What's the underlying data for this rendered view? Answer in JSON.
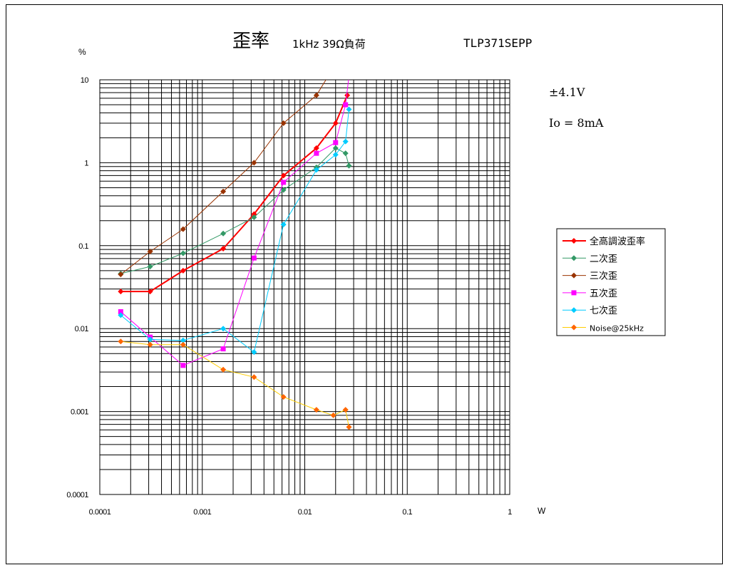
{
  "chart_data": {
    "type": "line",
    "title": "歪率",
    "subtitle": "1kHz 39Ω負荷",
    "model": "TLP371SEPP",
    "annotations": [
      "±4.1V",
      "Io = 8mA"
    ],
    "xlabel": "W",
    "ylabel": "%",
    "xscale": "log",
    "yscale": "log",
    "xlim": [
      0.0001,
      1
    ],
    "ylim": [
      0.0001,
      10
    ],
    "xticks": [
      "0.0001",
      "0.001",
      "0.01",
      "0.1",
      "1"
    ],
    "yticks": [
      "10",
      "1",
      "0.1",
      "0.01",
      "0.001",
      "0.0001"
    ],
    "grid": true,
    "legend_position": "right",
    "series": [
      {
        "name": "全高調波歪率",
        "color": "#ff0000",
        "marker": "diamond",
        "width": 2,
        "x": [
          0.00016,
          0.00031,
          0.00065,
          0.0016,
          0.0032,
          0.0062,
          0.013,
          0.02,
          0.026
        ],
        "y": [
          0.028,
          0.028,
          0.05,
          0.092,
          0.24,
          0.7,
          1.5,
          3.0,
          6.5
        ]
      },
      {
        "name": "二次歪",
        "color": "#339966",
        "marker": "diamond",
        "width": 1,
        "x": [
          0.00016,
          0.00031,
          0.00065,
          0.0016,
          0.0032,
          0.0062,
          0.013,
          0.02,
          0.025,
          0.027
        ],
        "y": [
          0.046,
          0.056,
          0.081,
          0.14,
          0.22,
          0.47,
          0.88,
          1.5,
          1.3,
          0.92
        ]
      },
      {
        "name": "三次歪",
        "color": "#993300",
        "marker": "diamond",
        "width": 1,
        "x": [
          0.00016,
          0.00031,
          0.00065,
          0.0016,
          0.0032,
          0.0062,
          0.013,
          0.019
        ],
        "y": [
          0.045,
          0.085,
          0.158,
          0.45,
          1.0,
          3.0,
          6.5,
          14
        ]
      },
      {
        "name": "五次歪",
        "color": "#ff00ff",
        "marker": "square",
        "width": 1,
        "x": [
          0.00016,
          0.00031,
          0.00065,
          0.0016,
          0.0032,
          0.0062,
          0.013,
          0.02,
          0.025,
          0.027
        ],
        "y": [
          0.016,
          0.0079,
          0.0036,
          0.0057,
          0.071,
          0.58,
          1.3,
          1.75,
          5.0,
          11
        ]
      },
      {
        "name": "七次歪",
        "color": "#00ccff",
        "marker": "diamond",
        "width": 1,
        "x": [
          0.00016,
          0.00031,
          0.00065,
          0.0016,
          0.0032,
          0.0062,
          0.013,
          0.02,
          0.025,
          0.027
        ],
        "y": [
          0.0145,
          0.0074,
          0.0072,
          0.01,
          0.0052,
          0.18,
          0.82,
          1.25,
          1.8,
          4.4
        ]
      },
      {
        "name": "Noise@25kHz",
        "color": "#ff6600",
        "line_color": "#ffcc00",
        "marker": "diamond",
        "width": 1,
        "x": [
          0.00016,
          0.00031,
          0.00065,
          0.0016,
          0.0032,
          0.0062,
          0.013,
          0.019,
          0.025,
          0.027
        ],
        "y": [
          0.007,
          0.0064,
          0.0064,
          0.0032,
          0.0026,
          0.0015,
          0.00105,
          0.0009,
          0.00105,
          0.00065
        ]
      }
    ]
  }
}
